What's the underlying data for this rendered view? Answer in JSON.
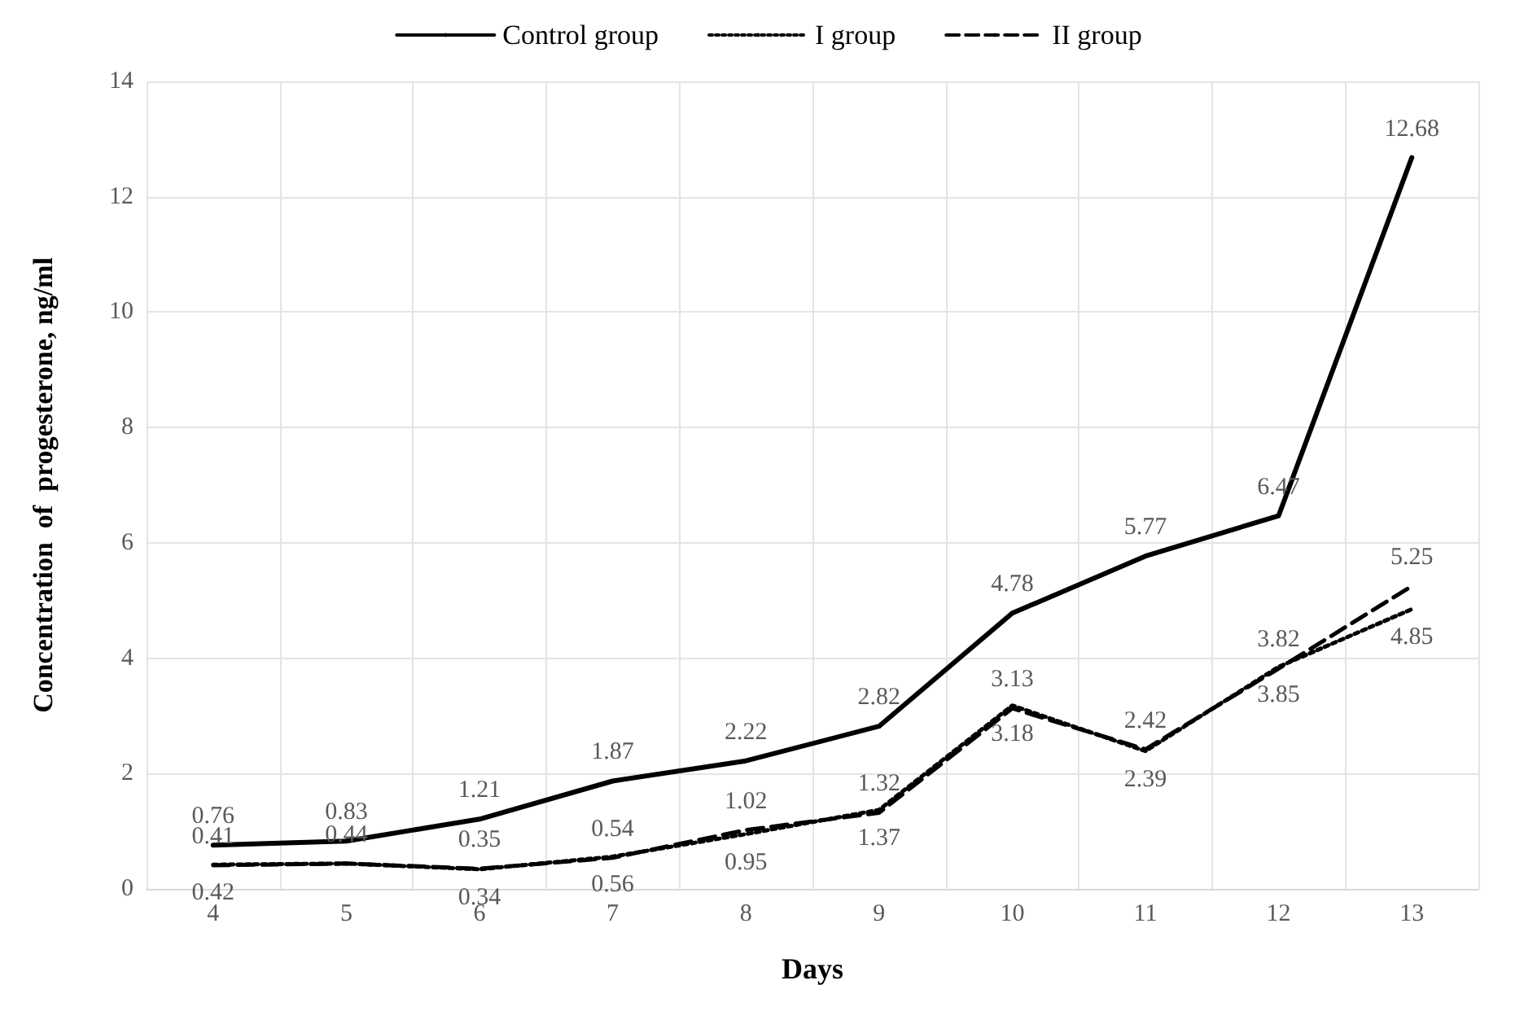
{
  "chart_data": {
    "type": "line",
    "xlabel": "Days",
    "ylabel": "Concentration  of  progesterone, ng/ml",
    "categories": [
      "4",
      "5",
      "6",
      "7",
      "8",
      "9",
      "10",
      "11",
      "12",
      "13"
    ],
    "series": [
      {
        "name": "Control group",
        "color": "#000000",
        "line_style": "solid",
        "values": [
          0.76,
          0.83,
          1.21,
          1.87,
          2.22,
          2.82,
          4.78,
          5.77,
          6.47,
          12.68
        ]
      },
      {
        "name": "I group",
        "color": "#000000",
        "line_style": "dotted",
        "values": [
          0.42,
          0.44,
          0.34,
          0.56,
          0.95,
          1.37,
          3.18,
          2.39,
          3.85,
          4.85
        ],
        "value_labels": [
          "0.42",
          null,
          "0.34",
          "0.56",
          "0.95",
          "1.37",
          "3.18",
          "2.39",
          "3.85",
          "4.85"
        ]
      },
      {
        "name": "II group",
        "color": "#000000",
        "line_style": "dashed",
        "values": [
          0.41,
          0.44,
          0.35,
          0.54,
          1.02,
          1.32,
          3.13,
          2.42,
          3.82,
          5.25
        ]
      }
    ],
    "ylim": [
      0,
      14
    ],
    "yticks": [
      0,
      2,
      4,
      6,
      8,
      10,
      12,
      14
    ],
    "grid": true,
    "legend": "top",
    "marker": "none",
    "data_labels": true
  }
}
